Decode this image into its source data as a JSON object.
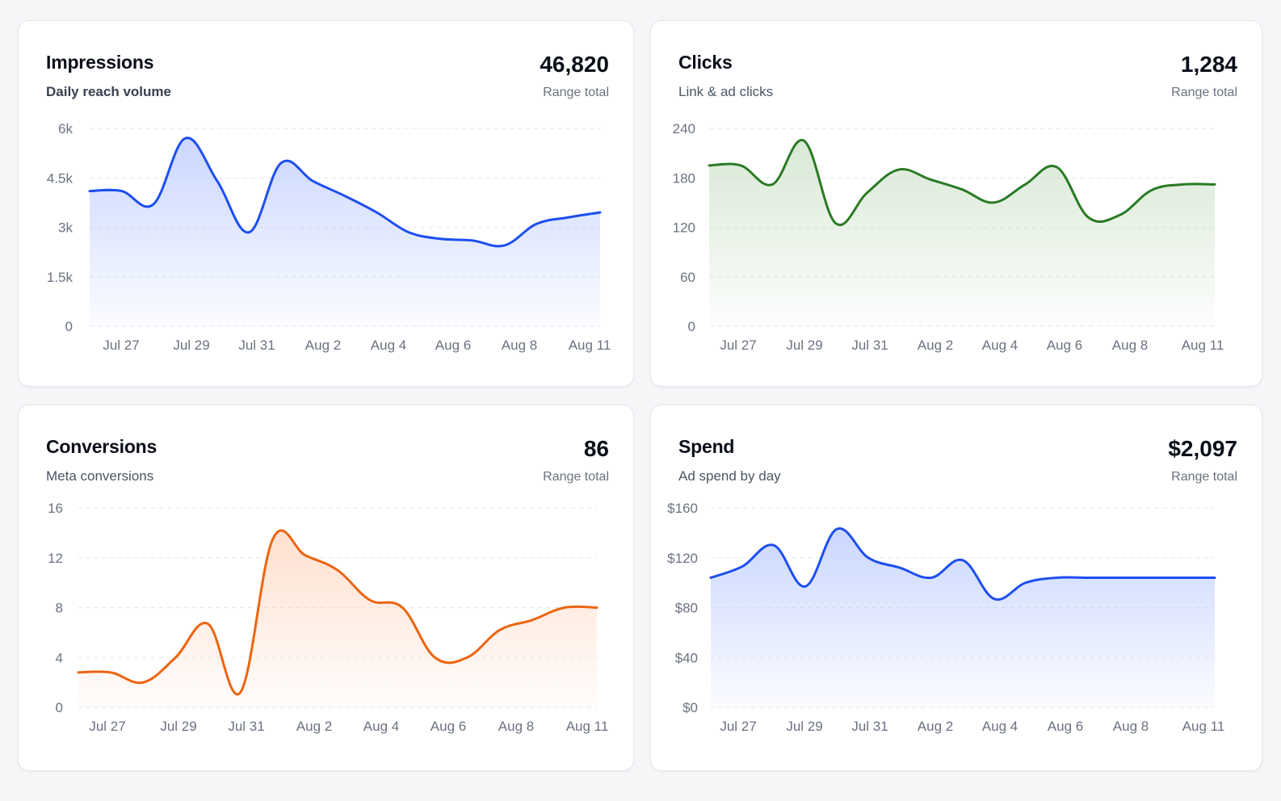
{
  "cards": [
    {
      "title": "Impressions",
      "subtitle": "Daily reach volume",
      "total": "46,820",
      "total_label": "Range total",
      "color": "#1d4ef0",
      "fill_color": "#9fb6ff"
    },
    {
      "title": "Clicks",
      "subtitle": "Link & ad clicks",
      "total": "1,284",
      "total_label": "Range total",
      "color": "#2a7a25",
      "fill_color": "#b9d6b3"
    },
    {
      "title": "Conversions",
      "subtitle": "Meta conversions",
      "total": "86",
      "total_label": "Range total",
      "color": "#ec6410",
      "fill_color": "#ffc7a8"
    },
    {
      "title": "Spend",
      "subtitle": "Ad spend by day",
      "total": "$2,097",
      "total_label": "Range total",
      "color": "#1d4ef0",
      "fill_color": "#9fb6ff"
    }
  ],
  "chart_data": [
    {
      "type": "area",
      "x": [
        "Jul 26",
        "Jul 27",
        "Jul 28",
        "Jul 29",
        "Jul 30",
        "Jul 31",
        "Aug 1",
        "Aug 2",
        "Aug 3",
        "Aug 4",
        "Aug 5",
        "Aug 6",
        "Aug 7",
        "Aug 8",
        "Aug 9",
        "Aug 10",
        "Aug 11"
      ],
      "x_tick_labels": [
        "Jul 27",
        "Jul 29",
        "Jul 31",
        "Aug 2",
        "Aug 4",
        "Aug 6",
        "Aug 8",
        "Aug 11"
      ],
      "x_ticks_shown": [
        "Jul 27",
        "Jul 29",
        "Jul 31",
        "Aug 2",
        "Aug 4",
        "Aug 6",
        "Aug 8",
        "Aug 11"
      ],
      "series": [
        {
          "values": [
            4100,
            4100,
            3700,
            5700,
            4400,
            2850,
            4950,
            4400,
            3950,
            3450,
            2850,
            2650,
            2600,
            2450,
            3100,
            3300,
            3450
          ]
        }
      ],
      "y_ticks": [
        "0",
        "1.5k",
        "3k",
        "4.5k",
        "6k"
      ],
      "ylim": [
        0,
        6000
      ],
      "grid": true
    },
    {
      "type": "area",
      "x": [
        "Jul 26",
        "Jul 27",
        "Jul 28",
        "Jul 29",
        "Jul 30",
        "Jul 31",
        "Aug 1",
        "Aug 2",
        "Aug 3",
        "Aug 4",
        "Aug 5",
        "Aug 6",
        "Aug 7",
        "Aug 8",
        "Aug 9",
        "Aug 10",
        "Aug 11"
      ],
      "x_tick_labels": [
        "Jul 27",
        "Jul 29",
        "Jul 31",
        "Aug 2",
        "Aug 4",
        "Aug 6",
        "Aug 8",
        "Aug 11"
      ],
      "x_ticks_shown": [
        "Jul 27",
        "Jul 29",
        "Jul 31",
        "Aug 2",
        "Aug 4",
        "Aug 6",
        "Aug 8",
        "Aug 11"
      ],
      "series": [
        {
          "values": [
            195,
            195,
            172,
            225,
            125,
            162,
            190,
            178,
            166,
            150,
            172,
            193,
            132,
            135,
            165,
            172,
            172
          ]
        }
      ],
      "y_ticks": [
        "0",
        "60",
        "120",
        "180",
        "240"
      ],
      "ylim": [
        0,
        240
      ],
      "grid": true
    },
    {
      "type": "area",
      "x": [
        "Jul 26",
        "Jul 27",
        "Jul 28",
        "Jul 29",
        "Jul 30",
        "Jul 31",
        "Aug 1",
        "Aug 2",
        "Aug 3",
        "Aug 4",
        "Aug 5",
        "Aug 6",
        "Aug 7",
        "Aug 8",
        "Aug 9",
        "Aug 10",
        "Aug 11"
      ],
      "x_tick_labels": [
        "Jul 27",
        "Jul 29",
        "Jul 31",
        "Aug 2",
        "Aug 4",
        "Aug 6",
        "Aug 8",
        "Aug 11"
      ],
      "x_ticks_shown": [
        "Jul 27",
        "Jul 29",
        "Jul 31",
        "Aug 2",
        "Aug 4",
        "Aug 6",
        "Aug 8",
        "Aug 11"
      ],
      "series": [
        {
          "values": [
            2.8,
            2.8,
            2.0,
            4.0,
            6.7,
            1.2,
            13.5,
            12.2,
            11.0,
            8.6,
            8.0,
            4.0,
            4.0,
            6.2,
            7.0,
            8.0,
            8.0
          ]
        }
      ],
      "y_ticks": [
        "0",
        "4",
        "8",
        "12",
        "16"
      ],
      "ylim": [
        0,
        16
      ],
      "grid": true
    },
    {
      "type": "area",
      "x": [
        "Jul 26",
        "Jul 27",
        "Jul 28",
        "Jul 29",
        "Jul 30",
        "Jul 31",
        "Aug 1",
        "Aug 2",
        "Aug 3",
        "Aug 4",
        "Aug 5",
        "Aug 6",
        "Aug 7",
        "Aug 8",
        "Aug 9",
        "Aug 10",
        "Aug 11"
      ],
      "x_tick_labels": [
        "Jul 27",
        "Jul 29",
        "Jul 31",
        "Aug 2",
        "Aug 4",
        "Aug 6",
        "Aug 8",
        "Aug 11"
      ],
      "x_ticks_shown": [
        "Jul 27",
        "Jul 29",
        "Jul 31",
        "Aug 2",
        "Aug 4",
        "Aug 6",
        "Aug 8",
        "Aug 11"
      ],
      "series": [
        {
          "values": [
            104,
            113,
            130,
            97,
            143,
            120,
            112,
            104,
            118,
            87,
            100,
            104,
            104,
            104,
            104,
            104,
            104
          ]
        }
      ],
      "y_ticks": [
        "$0",
        "$40",
        "$80",
        "$120",
        "$160"
      ],
      "ylim": [
        0,
        160
      ],
      "grid": true
    }
  ]
}
